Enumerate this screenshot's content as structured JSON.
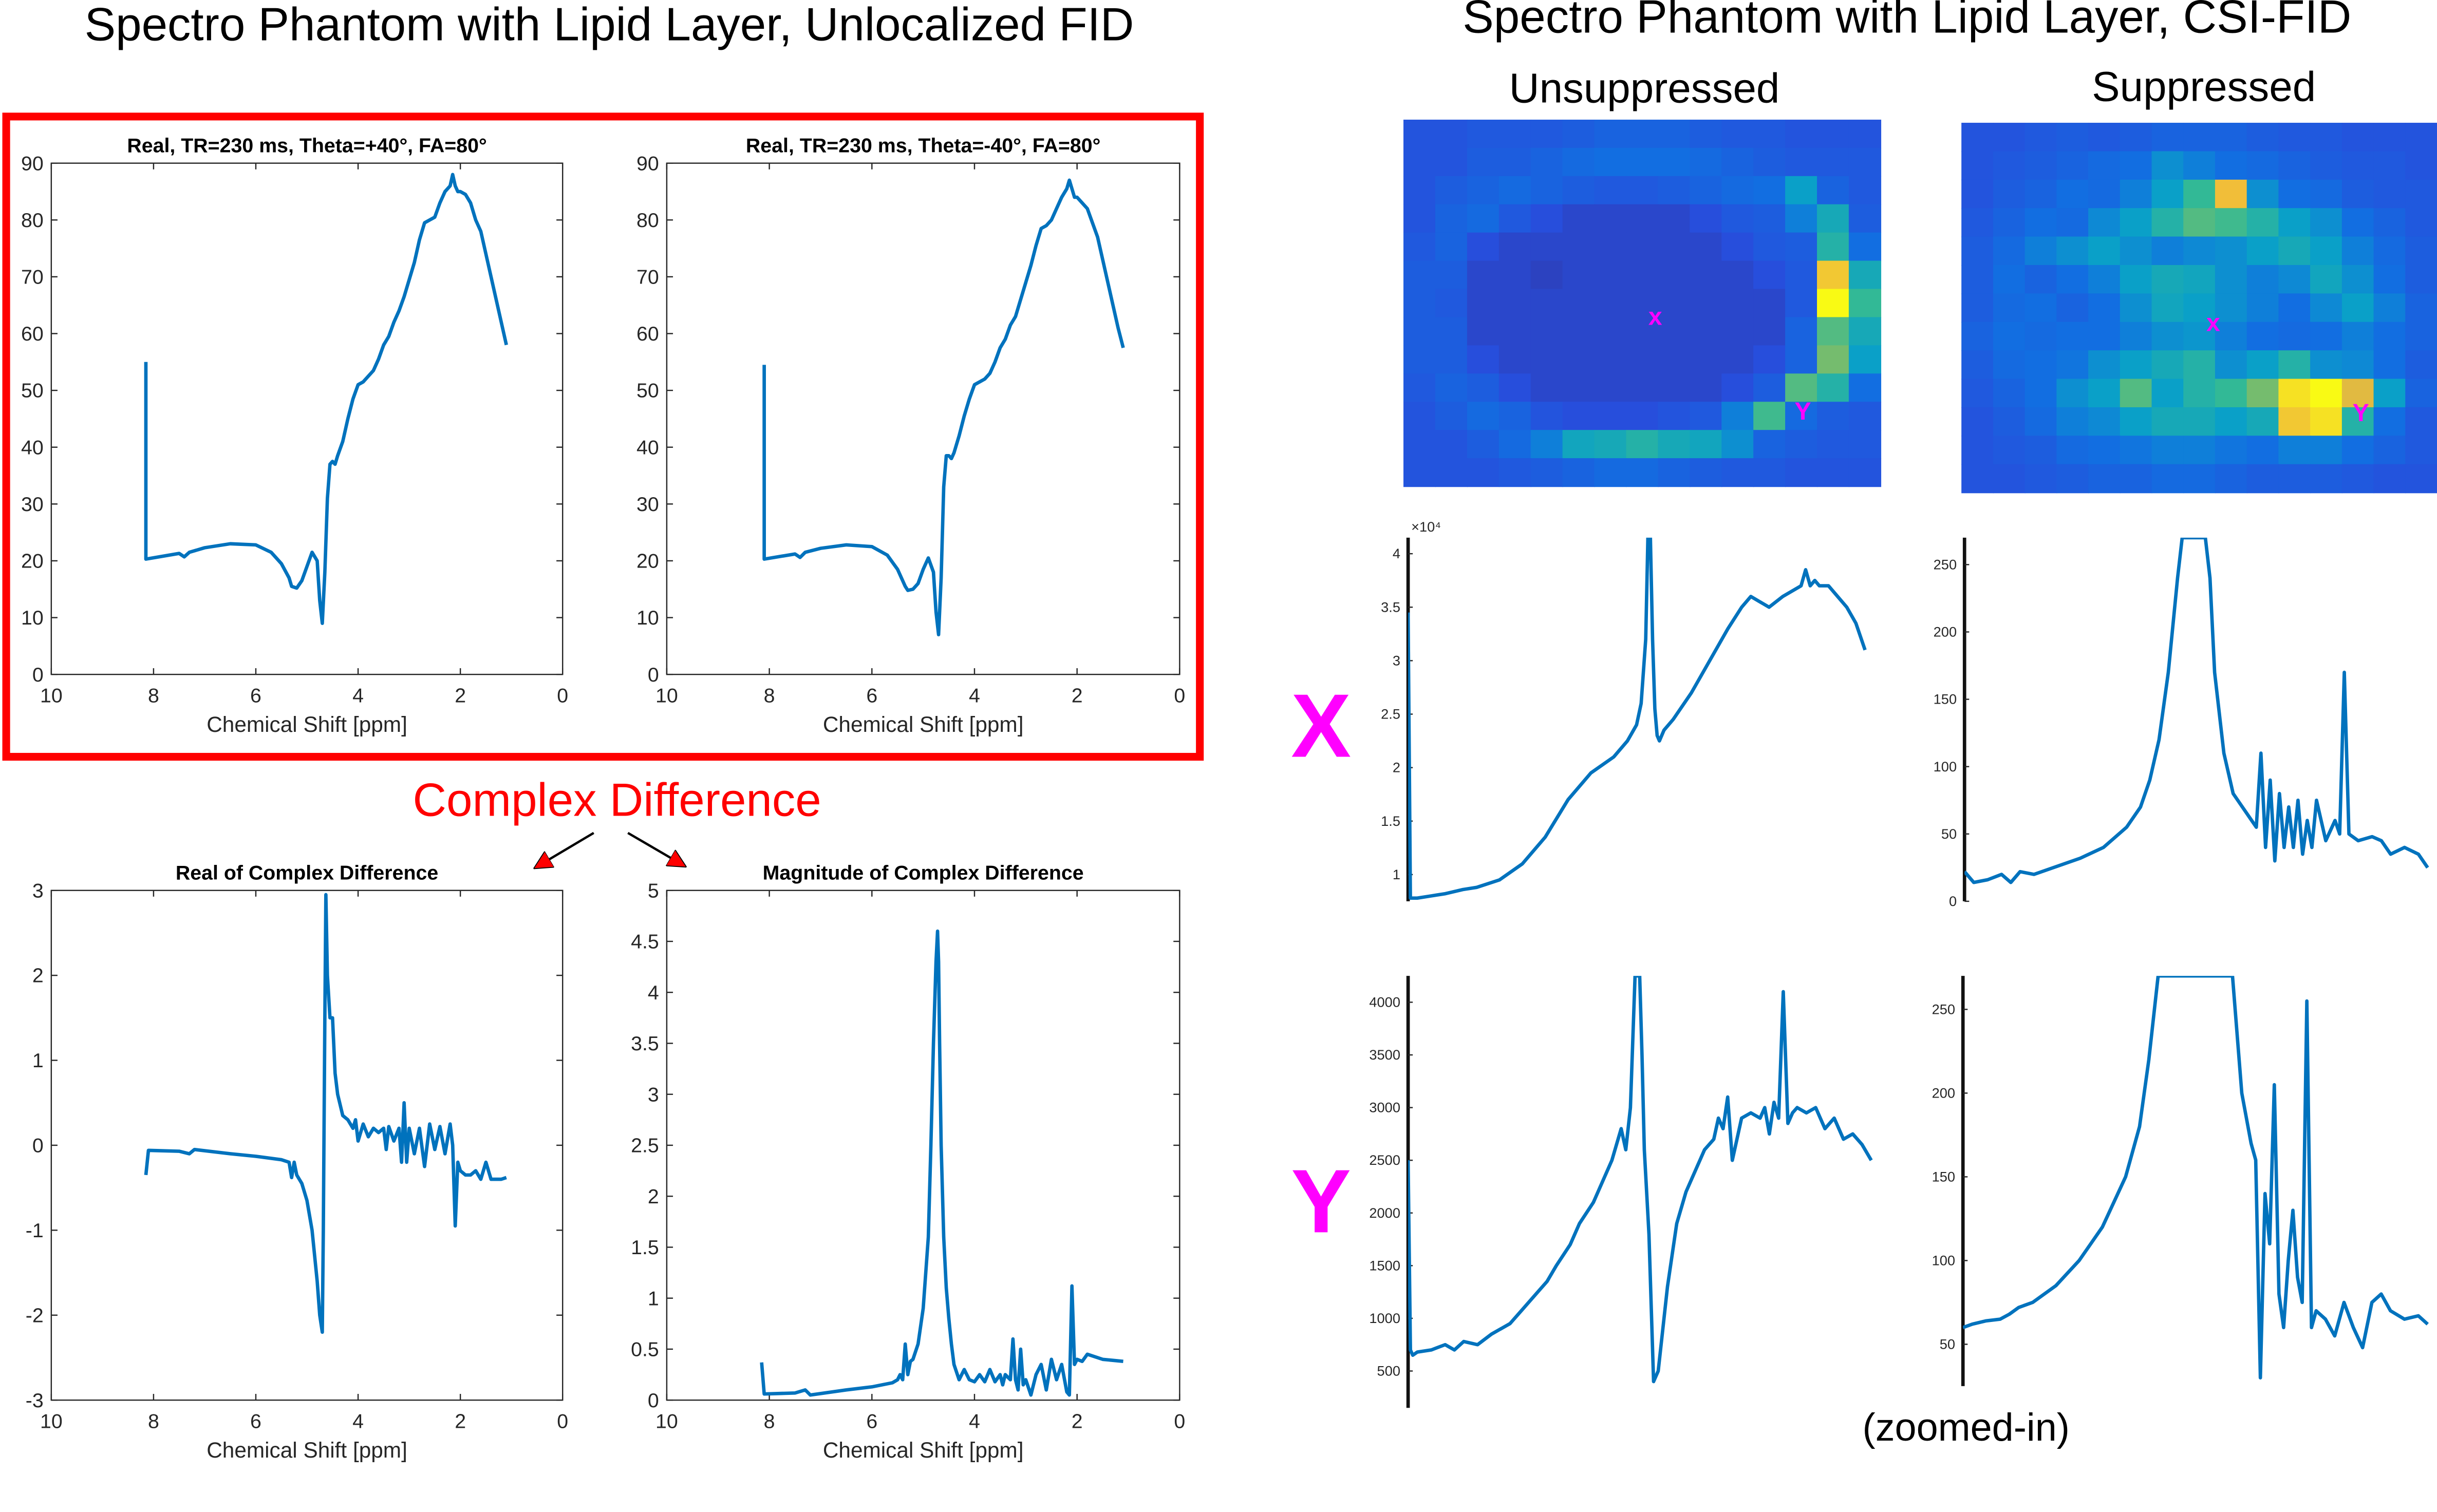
{
  "left_title": "Spectro Phantom with Lipid Layer, Unlocalized FID",
  "right_title": "Spectro Phantom with Lipid Layer, CSI-FID",
  "col_unsuppressed": "Unsuppressed",
  "col_suppressed": "Suppressed",
  "complex_diff_label": "Complex Difference",
  "zoomed_label": "(zoomed-in)",
  "row_x_label": "X",
  "row_y_label": "Y",
  "map_marker_x": "x",
  "map_marker_y": "Y",
  "colors": {
    "line": "#0072bd",
    "highlight": "#ff0000",
    "marker": "#ff00ff",
    "axis": "#262626"
  },
  "chart_data": [
    {
      "id": "pos40",
      "type": "line",
      "title": "Real, TR=230 ms, Theta=+40°, FA=80°",
      "xlabel": "Chemical Shift [ppm]",
      "ylabel": "",
      "xlim": [
        10,
        0
      ],
      "ylim": [
        0,
        90
      ],
      "xreverse": true,
      "xticks": [
        10,
        8,
        6,
        4,
        2,
        0
      ],
      "xtick_labels": [
        "10",
        "8",
        "6",
        "4",
        "2",
        "0"
      ],
      "yticks": [
        0,
        10,
        20,
        30,
        40,
        50,
        60,
        70,
        80,
        90
      ],
      "ytick_labels": [
        "0",
        "10",
        "20",
        "30",
        "40",
        "50",
        "60",
        "70",
        "80",
        "90"
      ],
      "x": [
        8.15,
        8.15,
        7.5,
        7.4,
        7.3,
        7,
        6.5,
        6,
        5.7,
        5.5,
        5.35,
        5.3,
        5.2,
        5.1,
        5,
        4.9,
        4.8,
        4.75,
        4.7,
        4.65,
        4.6,
        4.55,
        4.5,
        4.45,
        4.4,
        4.3,
        4.2,
        4.1,
        4,
        3.9,
        3.8,
        3.7,
        3.6,
        3.5,
        3.4,
        3.3,
        3.2,
        3.1,
        3,
        2.9,
        2.8,
        2.7,
        2.6,
        2.5,
        2.4,
        2.3,
        2.2,
        2.15,
        2.1,
        2.05,
        2,
        1.9,
        1.8,
        1.7,
        1.6,
        1.5,
        1.4,
        1.3,
        1.2,
        1.1
      ],
      "y": [
        55,
        20.3,
        21.3,
        20.7,
        21.5,
        22.3,
        23,
        22.8,
        21.5,
        19.5,
        17,
        15.5,
        15.2,
        16.5,
        19,
        21.5,
        20,
        13,
        9,
        18,
        31,
        37,
        37.5,
        37,
        38.5,
        41,
        45,
        48.5,
        51,
        51.5,
        52.5,
        53.5,
        55.5,
        58,
        59.5,
        62,
        64,
        66.5,
        69.5,
        72.5,
        76.5,
        79.5,
        80,
        80.5,
        83,
        85,
        86,
        88,
        86,
        85,
        85,
        84.5,
        83,
        80,
        78,
        74,
        70,
        66,
        62,
        58
      ]
    },
    {
      "id": "neg40",
      "type": "line",
      "title": "Real, TR=230 ms, Theta=-40°, FA=80°",
      "xlabel": "Chemical Shift [ppm]",
      "ylabel": "",
      "xlim": [
        10,
        0
      ],
      "ylim": [
        0,
        90
      ],
      "xreverse": true,
      "xticks": [
        10,
        8,
        6,
        4,
        2,
        0
      ],
      "xtick_labels": [
        "10",
        "8",
        "6",
        "4",
        "2",
        "0"
      ],
      "yticks": [
        0,
        10,
        20,
        30,
        40,
        50,
        60,
        70,
        80,
        90
      ],
      "ytick_labels": [
        "0",
        "10",
        "20",
        "30",
        "40",
        "50",
        "60",
        "70",
        "80",
        "90"
      ],
      "x": [
        8.1,
        8.1,
        7.5,
        7.4,
        7.3,
        7,
        6.5,
        6,
        5.7,
        5.5,
        5.35,
        5.3,
        5.2,
        5.1,
        5,
        4.9,
        4.8,
        4.75,
        4.7,
        4.65,
        4.6,
        4.55,
        4.5,
        4.45,
        4.4,
        4.3,
        4.2,
        4.1,
        4,
        3.9,
        3.8,
        3.7,
        3.6,
        3.5,
        3.4,
        3.3,
        3.2,
        3.1,
        3,
        2.9,
        2.8,
        2.7,
        2.6,
        2.5,
        2.4,
        2.3,
        2.2,
        2.15,
        2.1,
        2.05,
        2,
        1.9,
        1.8,
        1.7,
        1.6,
        1.5,
        1.4,
        1.3,
        1.2,
        1.1
      ],
      "y": [
        54.5,
        20.3,
        21.2,
        20.6,
        21.5,
        22.2,
        22.8,
        22.5,
        21,
        18.5,
        15.5,
        14.8,
        15,
        16,
        18.5,
        20.5,
        18,
        11,
        7,
        17,
        33,
        38.5,
        38.5,
        38,
        39,
        42,
        45.5,
        48.5,
        51,
        51.5,
        52,
        53,
        55,
        57.5,
        59,
        61.5,
        63,
        66,
        69,
        72,
        75.5,
        78.5,
        79,
        80,
        82,
        84,
        85.5,
        87,
        85.5,
        84,
        84,
        83,
        82,
        79.5,
        77,
        73,
        69,
        65,
        61,
        57.5
      ]
    },
    {
      "id": "realdiff",
      "type": "line",
      "title": "Real of Complex Difference",
      "xlabel": "Chemical Shift [ppm]",
      "ylabel": "",
      "xlim": [
        10,
        0
      ],
      "ylim": [
        -3,
        3
      ],
      "xreverse": true,
      "xticks": [
        10,
        8,
        6,
        4,
        2,
        0
      ],
      "xtick_labels": [
        "10",
        "8",
        "6",
        "4",
        "2",
        "0"
      ],
      "yticks": [
        -3,
        -2,
        -1,
        0,
        1,
        2,
        3
      ],
      "ytick_labels": [
        "-3",
        "-2",
        "-1",
        "0",
        "1",
        "2",
        "3"
      ],
      "x": [
        8.15,
        8.1,
        7.5,
        7.3,
        7.2,
        6.5,
        6,
        5.5,
        5.35,
        5.3,
        5.25,
        5.2,
        5.1,
        5,
        4.9,
        4.8,
        4.75,
        4.7,
        4.68,
        4.65,
        4.63,
        4.6,
        4.55,
        4.5,
        4.45,
        4.4,
        4.3,
        4.2,
        4.1,
        4.05,
        4,
        3.9,
        3.8,
        3.7,
        3.6,
        3.5,
        3.45,
        3.4,
        3.3,
        3.2,
        3.15,
        3.1,
        3.05,
        3,
        2.9,
        2.8,
        2.7,
        2.6,
        2.5,
        2.4,
        2.3,
        2.2,
        2.15,
        2.1,
        2.05,
        2,
        1.9,
        1.8,
        1.7,
        1.6,
        1.5,
        1.4,
        1.3,
        1.2,
        1.1
      ],
      "y": [
        -0.35,
        -0.06,
        -0.07,
        -0.1,
        -0.05,
        -0.1,
        -0.13,
        -0.17,
        -0.2,
        -0.38,
        -0.2,
        -0.35,
        -0.45,
        -0.65,
        -1.0,
        -1.6,
        -2.0,
        -2.2,
        -1.0,
        1.5,
        2.95,
        2.0,
        1.5,
        1.5,
        0.85,
        0.6,
        0.35,
        0.3,
        0.2,
        0.3,
        0.05,
        0.25,
        0.1,
        0.2,
        0.15,
        0.2,
        -0.05,
        0.22,
        0.05,
        0.2,
        -0.2,
        0.5,
        -0.2,
        0.2,
        -0.1,
        0.2,
        -0.25,
        0.25,
        -0.05,
        0.22,
        -0.1,
        0.25,
        0.0,
        -0.95,
        -0.2,
        -0.3,
        -0.35,
        -0.35,
        -0.3,
        -0.4,
        -0.2,
        -0.4,
        -0.4,
        -0.4,
        -0.38
      ]
    },
    {
      "id": "magdiff",
      "type": "line",
      "title": "Magnitude of Complex Difference",
      "xlabel": "Chemical Shift [ppm]",
      "ylabel": "",
      "xlim": [
        10,
        0
      ],
      "ylim": [
        0,
        5
      ],
      "xreverse": true,
      "xticks": [
        10,
        8,
        6,
        4,
        2,
        0
      ],
      "xtick_labels": [
        "10",
        "8",
        "6",
        "4",
        "2",
        "0"
      ],
      "yticks": [
        0,
        0.5,
        1,
        1.5,
        2,
        2.5,
        3,
        3.5,
        4,
        4.5,
        5
      ],
      "ytick_labels": [
        "0",
        "0.5",
        "1",
        "1.5",
        "2",
        "2.5",
        "3",
        "3.5",
        "4",
        "4.5",
        "5"
      ],
      "x": [
        8.15,
        8.1,
        7.5,
        7.3,
        7.2,
        6.5,
        6,
        5.6,
        5.5,
        5.45,
        5.4,
        5.35,
        5.3,
        5.25,
        5.2,
        5.1,
        5,
        4.9,
        4.85,
        4.8,
        4.75,
        4.72,
        4.7,
        4.68,
        4.65,
        4.6,
        4.55,
        4.5,
        4.45,
        4.4,
        4.3,
        4.2,
        4.1,
        4,
        3.9,
        3.8,
        3.7,
        3.6,
        3.5,
        3.45,
        3.4,
        3.3,
        3.25,
        3.2,
        3.15,
        3.1,
        3.05,
        3,
        2.9,
        2.8,
        2.7,
        2.6,
        2.5,
        2.4,
        2.3,
        2.2,
        2.15,
        2.1,
        2.05,
        2,
        1.9,
        1.8,
        1.5,
        1.1
      ],
      "y": [
        0.37,
        0.06,
        0.07,
        0.1,
        0.05,
        0.1,
        0.13,
        0.17,
        0.2,
        0.25,
        0.2,
        0.55,
        0.25,
        0.38,
        0.4,
        0.55,
        0.9,
        1.6,
        2.5,
        3.5,
        4.3,
        4.6,
        4.3,
        3.5,
        2.5,
        1.6,
        1.1,
        0.8,
        0.55,
        0.35,
        0.2,
        0.3,
        0.2,
        0.18,
        0.25,
        0.18,
        0.3,
        0.18,
        0.25,
        0.15,
        0.25,
        0.2,
        0.6,
        0.2,
        0.1,
        0.5,
        0.15,
        0.2,
        0.05,
        0.25,
        0.35,
        0.1,
        0.4,
        0.2,
        0.35,
        0.08,
        0.05,
        1.12,
        0.35,
        0.4,
        0.38,
        0.45,
        0.4,
        0.38
      ]
    },
    {
      "id": "unsupX",
      "type": "line",
      "title": "",
      "xlabel": "",
      "ylabel": "",
      "ylim": [
        0.75,
        4.15
      ],
      "exponent_label": "×10⁴",
      "yticks": [
        1,
        1.5,
        2,
        2.5,
        3,
        3.5,
        4
      ],
      "ytick_labels": [
        "1",
        "1.5",
        "2",
        "2.5",
        "3",
        "3.5",
        "4"
      ],
      "x": [
        0,
        0.005,
        0.02,
        0.05,
        0.08,
        0.12,
        0.15,
        0.2,
        0.25,
        0.3,
        0.35,
        0.4,
        0.45,
        0.48,
        0.5,
        0.51,
        0.52,
        0.525,
        0.53,
        0.535,
        0.54,
        0.545,
        0.55,
        0.56,
        0.58,
        0.62,
        0.66,
        0.7,
        0.73,
        0.75,
        0.77,
        0.79,
        0.82,
        0.84,
        0.86,
        0.87,
        0.88,
        0.89,
        0.9,
        0.92,
        0.94,
        0.96,
        0.98,
        1
      ],
      "y": [
        3.45,
        0.78,
        0.78,
        0.8,
        0.82,
        0.86,
        0.88,
        0.95,
        1.1,
        1.35,
        1.7,
        1.95,
        2.1,
        2.25,
        2.4,
        2.6,
        3.2,
        4.2,
        4.2,
        3.2,
        2.55,
        2.3,
        2.25,
        2.35,
        2.45,
        2.7,
        3.0,
        3.3,
        3.5,
        3.6,
        3.55,
        3.5,
        3.6,
        3.65,
        3.7,
        3.85,
        3.7,
        3.75,
        3.7,
        3.7,
        3.6,
        3.5,
        3.35,
        3.1
      ]
    },
    {
      "id": "supX",
      "type": "line",
      "title": "",
      "xlabel": "",
      "ylabel": "",
      "ylim": [
        0,
        270
      ],
      "yticks": [
        0,
        50,
        100,
        150,
        200,
        250
      ],
      "ytick_labels": [
        "0",
        "50",
        "100",
        "150",
        "200",
        "250"
      ],
      "x": [
        0,
        0.02,
        0.05,
        0.08,
        0.1,
        0.12,
        0.15,
        0.2,
        0.25,
        0.3,
        0.35,
        0.38,
        0.4,
        0.42,
        0.44,
        0.46,
        0.47,
        0.48,
        0.5,
        0.52,
        0.53,
        0.54,
        0.56,
        0.58,
        0.6,
        0.62,
        0.63,
        0.64,
        0.65,
        0.66,
        0.67,
        0.68,
        0.69,
        0.7,
        0.71,
        0.72,
        0.73,
        0.74,
        0.75,
        0.76,
        0.78,
        0.8,
        0.81,
        0.82,
        0.83,
        0.85,
        0.88,
        0.9,
        0.92,
        0.95,
        0.98,
        1
      ],
      "y": [
        22,
        14,
        16,
        20,
        14,
        22,
        20,
        26,
        32,
        40,
        55,
        70,
        90,
        120,
        170,
        240,
        270,
        270,
        270,
        270,
        240,
        170,
        110,
        80,
        70,
        60,
        55,
        110,
        40,
        90,
        30,
        80,
        40,
        70,
        40,
        75,
        35,
        60,
        40,
        75,
        45,
        60,
        50,
        170,
        50,
        45,
        48,
        45,
        35,
        40,
        35,
        25
      ]
    },
    {
      "id": "unsupY",
      "type": "line",
      "title": "",
      "xlabel": "",
      "ylabel": "",
      "ylim": [
        150,
        4250
      ],
      "yticks": [
        500,
        1000,
        1500,
        2000,
        2500,
        3000,
        3500,
        4000
      ],
      "ytick_labels": [
        "500",
        "1000",
        "1500",
        "2000",
        "2500",
        "3000",
        "3500",
        "4000"
      ],
      "x": [
        0,
        0.005,
        0.01,
        0.02,
        0.05,
        0.08,
        0.1,
        0.12,
        0.15,
        0.18,
        0.2,
        0.22,
        0.25,
        0.28,
        0.3,
        0.32,
        0.35,
        0.37,
        0.4,
        0.42,
        0.44,
        0.46,
        0.47,
        0.48,
        0.49,
        0.5,
        0.505,
        0.51,
        0.52,
        0.53,
        0.54,
        0.55,
        0.56,
        0.57,
        0.58,
        0.6,
        0.62,
        0.64,
        0.66,
        0.67,
        0.68,
        0.69,
        0.7,
        0.72,
        0.74,
        0.76,
        0.77,
        0.78,
        0.79,
        0.8,
        0.81,
        0.82,
        0.83,
        0.84,
        0.86,
        0.88,
        0.9,
        0.92,
        0.94,
        0.96,
        0.98,
        1
      ],
      "y": [
        2500,
        700,
        650,
        680,
        700,
        750,
        700,
        780,
        750,
        850,
        900,
        950,
        1100,
        1250,
        1350,
        1500,
        1700,
        1900,
        2100,
        2300,
        2500,
        2800,
        2600,
        3000,
        4250,
        4250,
        3500,
        2600,
        1800,
        400,
        500,
        900,
        1300,
        1600,
        1900,
        2200,
        2400,
        2600,
        2700,
        2900,
        2800,
        3100,
        2500,
        2900,
        2950,
        2900,
        3000,
        2750,
        3050,
        2900,
        4100,
        2850,
        2950,
        3000,
        2950,
        3000,
        2800,
        2900,
        2700,
        2750,
        2650,
        2500
      ]
    },
    {
      "id": "supY",
      "type": "line",
      "title": "",
      "xlabel": "",
      "ylabel": "",
      "ylim": [
        25,
        270
      ],
      "yticks": [
        50,
        100,
        150,
        200,
        250
      ],
      "ytick_labels": [
        "50",
        "100",
        "150",
        "200",
        "250"
      ],
      "x": [
        0,
        0.02,
        0.05,
        0.08,
        0.1,
        0.12,
        0.15,
        0.2,
        0.25,
        0.3,
        0.35,
        0.38,
        0.4,
        0.42,
        0.44,
        0.46,
        0.47,
        0.48,
        0.5,
        0.52,
        0.53,
        0.54,
        0.56,
        0.58,
        0.6,
        0.62,
        0.63,
        0.64,
        0.65,
        0.66,
        0.67,
        0.68,
        0.69,
        0.7,
        0.71,
        0.72,
        0.73,
        0.74,
        0.75,
        0.76,
        0.78,
        0.8,
        0.82,
        0.84,
        0.86,
        0.88,
        0.9,
        0.92,
        0.95,
        0.98,
        1
      ],
      "y": [
        60,
        62,
        64,
        65,
        68,
        72,
        75,
        85,
        100,
        120,
        150,
        180,
        220,
        270,
        270,
        270,
        270,
        270,
        270,
        270,
        270,
        270,
        270,
        270,
        200,
        170,
        160,
        30,
        140,
        110,
        205,
        80,
        60,
        100,
        130,
        90,
        75,
        255,
        60,
        70,
        65,
        55,
        75,
        60,
        48,
        75,
        80,
        70,
        65,
        67,
        62
      ]
    }
  ]
}
